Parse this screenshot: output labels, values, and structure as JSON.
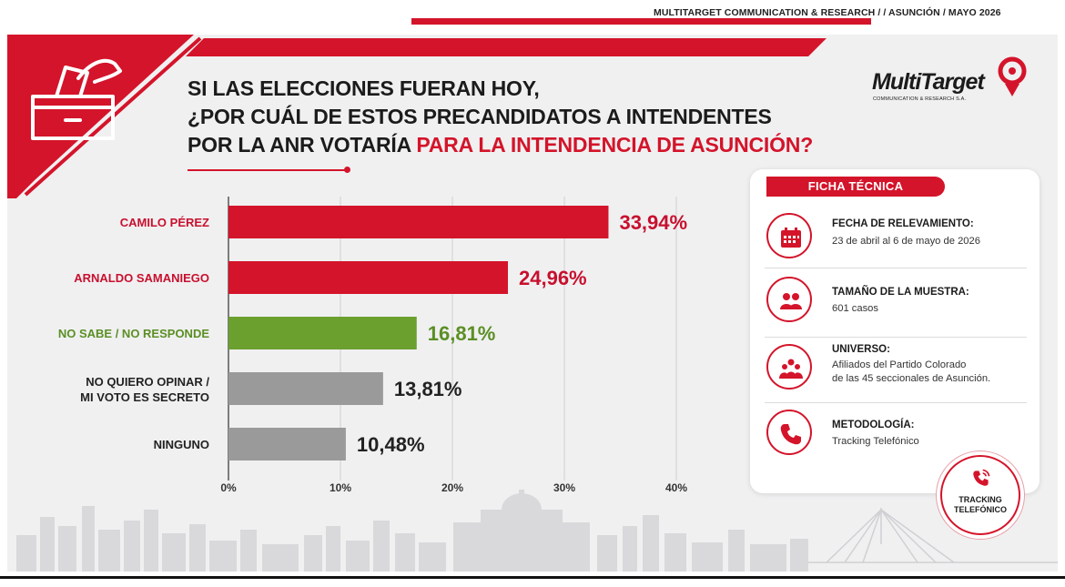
{
  "header": {
    "meta": "MULTITARGET COMMUNICATION & RESEARCH /   / ASUNCIÓN / MAYO  2026"
  },
  "title": {
    "line1": "SI LAS ELECCIONES FUERAN HOY,",
    "line2": "¿POR CUÁL DE ESTOS PRECANDIDATOS A INTENDENTES",
    "line3_prefix": "POR LA ANR VOTARÍA ",
    "line3_highlight": "PARA LA INTENDENCIA DE ASUNCIÓN?"
  },
  "logo": {
    "word": "MultiTarget",
    "sub": "COMMUNICATION & RESEARCH S.A."
  },
  "chart_data": {
    "type": "bar",
    "orientation": "horizontal",
    "categories": [
      "CAMILO PÉREZ",
      "ARNALDO SAMANIEGO",
      "NO SABE / NO RESPONDE",
      "NO QUIERO OPINAR / MI VOTO ES SECRETO",
      "NINGUNO"
    ],
    "category_lines": [
      [
        "CAMILO PÉREZ"
      ],
      [
        "ARNALDO SAMANIEGO"
      ],
      [
        "NO SABE / NO RESPONDE"
      ],
      [
        "NO QUIERO OPINAR /",
        "MI VOTO ES SECRETO"
      ],
      [
        "NINGUNO"
      ]
    ],
    "values": [
      33.94,
      24.96,
      16.81,
      13.81,
      10.48
    ],
    "value_labels": [
      "33,94%",
      "24,96%",
      "16,81%",
      "13,81%",
      "10,48%"
    ],
    "bar_colors": [
      "#d4142a",
      "#d4142a",
      "#6b9f2e",
      "#9a9a9a",
      "#9a9a9a"
    ],
    "label_colors": [
      "#c8102e",
      "#c8102e",
      "#5b8f24",
      "#222222",
      "#222222"
    ],
    "xlim": [
      0,
      40
    ],
    "xticks": [
      0,
      10,
      20,
      30,
      40
    ],
    "xtick_labels": [
      "0%",
      "10%",
      "20%",
      "30%",
      "40%"
    ],
    "grid": true
  },
  "ficha": {
    "header": "FICHA TÉCNICA",
    "items": [
      {
        "icon": "calendar-icon",
        "label": "FECHA DE RELEVAMIENTO:",
        "value": [
          "23 de abril al 6 de mayo de 2026"
        ]
      },
      {
        "icon": "people-icon",
        "label": "TAMAÑO DE LA MUESTRA:",
        "value": [
          "601 casos"
        ]
      },
      {
        "icon": "group-icon",
        "label": "UNIVERSO:",
        "value": [
          "Afiliados del Partido Colorado",
          "de las 45 seccionales de Asunción."
        ]
      },
      {
        "icon": "phone-icon",
        "label": "METODOLOGÍA:",
        "value": [
          "Tracking Telefónico"
        ]
      }
    ]
  },
  "badge": {
    "line1": "TRACKING",
    "line2": "TELEFÓNICO"
  },
  "colors": {
    "accent": "#d4142a",
    "green": "#6b9f2e",
    "gray": "#9a9a9a"
  }
}
